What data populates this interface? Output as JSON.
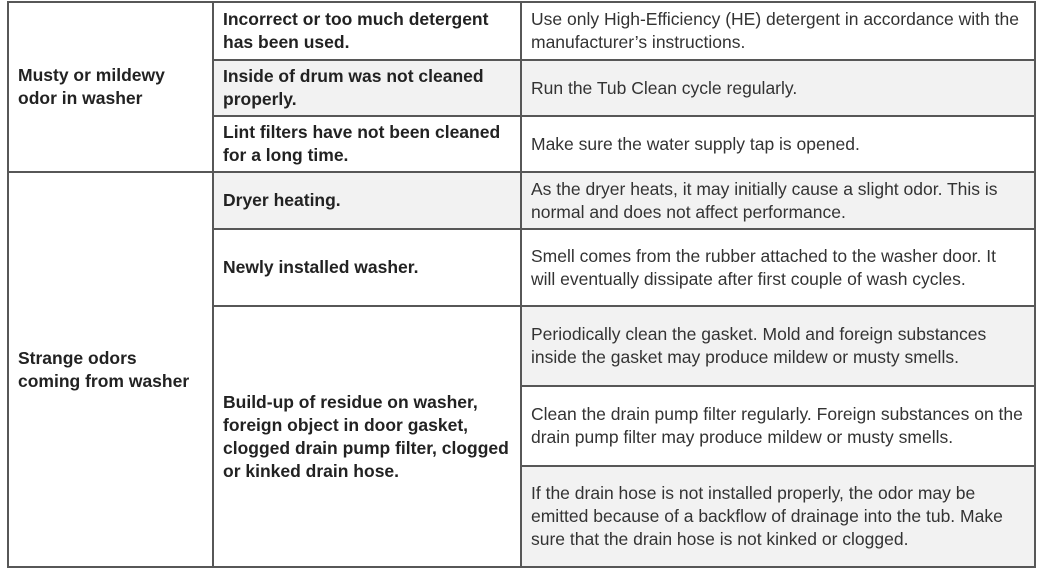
{
  "groups": [
    {
      "symptom": "Musty or mildewy odor in washer",
      "rows": [
        {
          "cause": "Incorrect or too much detergent has been used.",
          "solution": "Use only High-Efficiency (HE) detergent in accordance with the manufacturer’s instructions."
        },
        {
          "cause": "Inside of drum was not cleaned properly.",
          "solution": "Run the Tub Clean cycle regularly."
        },
        {
          "cause": "Lint filters have not been cleaned for a long time.",
          "solution": "Make sure the water supply tap is opened."
        }
      ]
    },
    {
      "symptom": "Strange odors coming from washer",
      "rows": [
        {
          "cause": "Dryer heating.",
          "solution": "As the dryer heats, it may initially cause a slight odor. This is normal and does not affect performance."
        },
        {
          "cause": "Newly installed washer.",
          "solution": "Smell comes from the rubber attached to the washer door.  It will eventually dissipate after first couple of wash cycles."
        },
        {
          "cause": "Build-up of residue on washer, foreign object in door gasket, clogged drain pump filter, clogged or kinked drain hose.",
          "solutions": [
            "Periodically clean the gasket. Mold and foreign substances inside the gasket may produce mildew or musty smells.",
            "Clean the drain pump filter regularly. Foreign substances on the drain pump filter may produce mildew or musty smells.",
            "If the drain hose is not installed properly, the odor may be emitted because of a backflow of drainage into the tub. Make sure that the drain hose is not kinked or clogged."
          ]
        }
      ]
    }
  ]
}
